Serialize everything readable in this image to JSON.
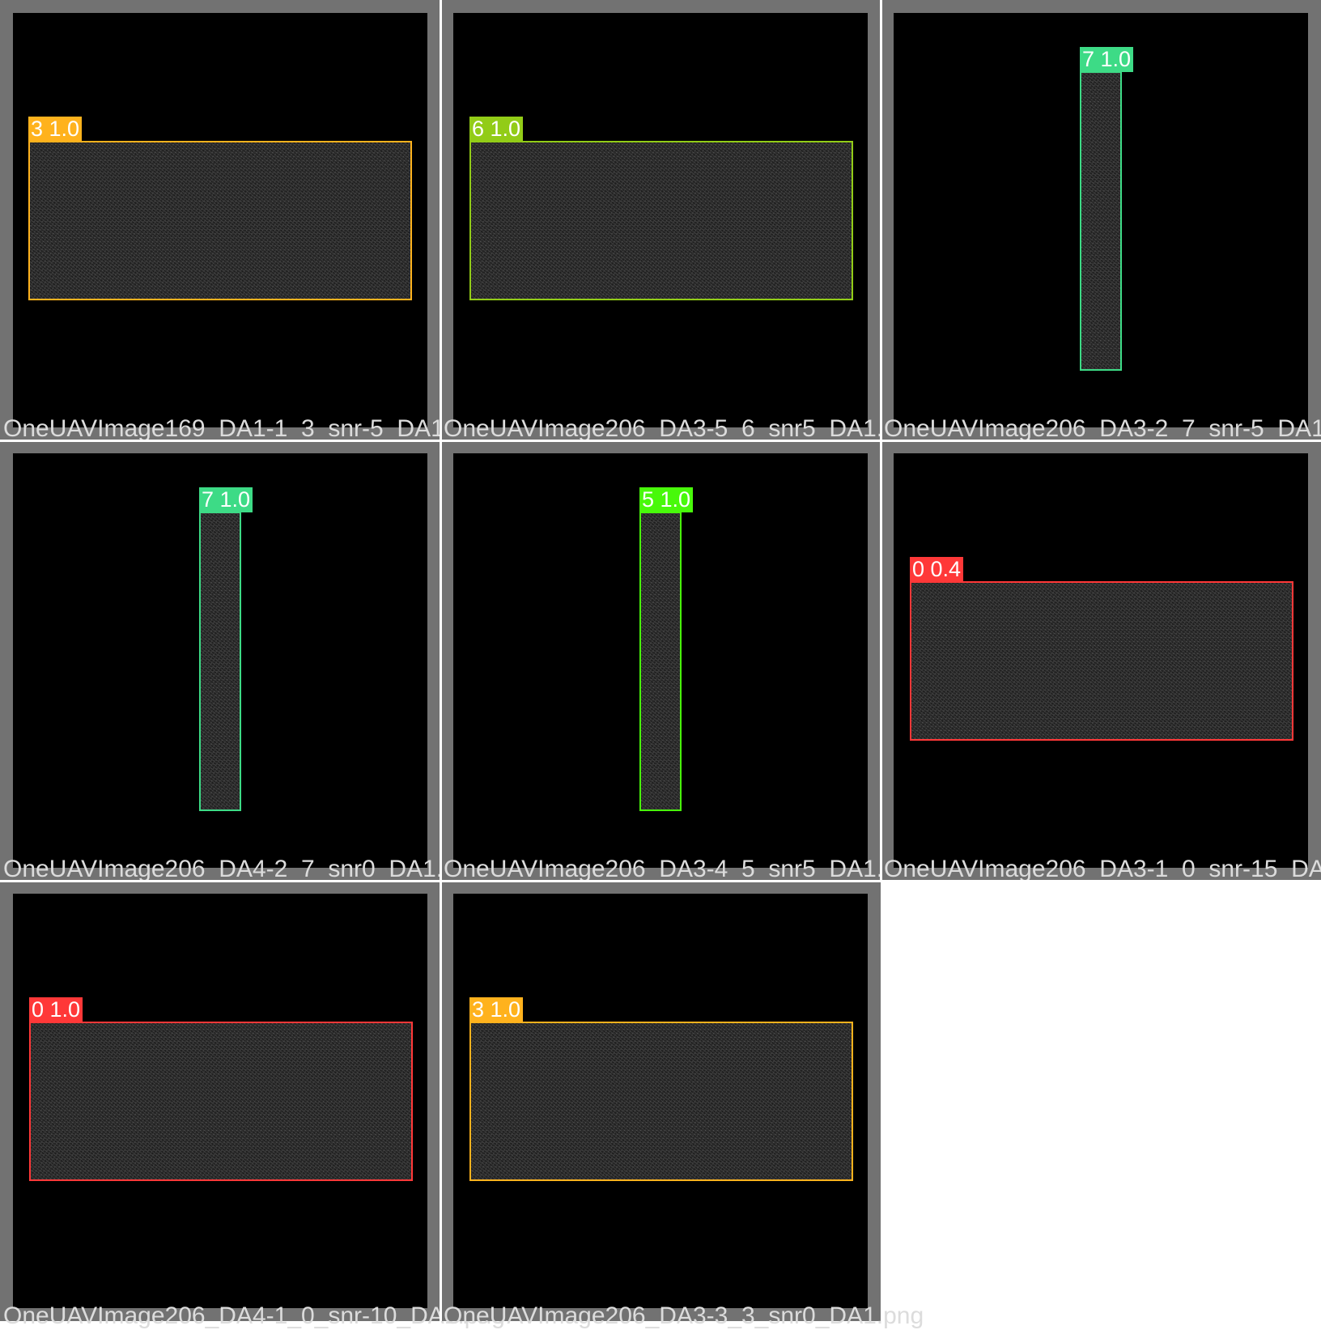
{
  "tiles": [
    {
      "filename": "OneUAVImage169_DA1-1_3_snr-5_DA1.png",
      "label": "3 1.0",
      "color": "#ffb21d"
    },
    {
      "filename": "OneUAVImage206_DA3-5_6_snr5_DA1.png",
      "label": "6 1.0",
      "color": "#92cc17"
    },
    {
      "filename": "OneUAVImage206_DA3-2_7_snr-5_DA1.png",
      "label": "7 1.0",
      "color": "#3ddb86"
    },
    {
      "filename": "OneUAVImage206_DA4-2_7_snr0_DA1.png",
      "label": "7 1.0",
      "color": "#3ddb86"
    },
    {
      "filename": "OneUAVImage206_DA3-4_5_snr5_DA1.png",
      "label": "5 1.0",
      "color": "#48f90a"
    },
    {
      "filename": "OneUAVImage206_DA3-1_0_snr-15_DA1.png",
      "label": "0 0.4",
      "color": "#ff3838"
    },
    {
      "filename": "OneUAVImage206_DA4-1_0_snr-10_DA1.png",
      "label": "0 1.0",
      "color": "#ff3838"
    },
    {
      "filename": "OneUAVImage206_DA3-3_3_snr0_DA1.png",
      "label": "3 1.0",
      "color": "#ffb21d"
    }
  ]
}
